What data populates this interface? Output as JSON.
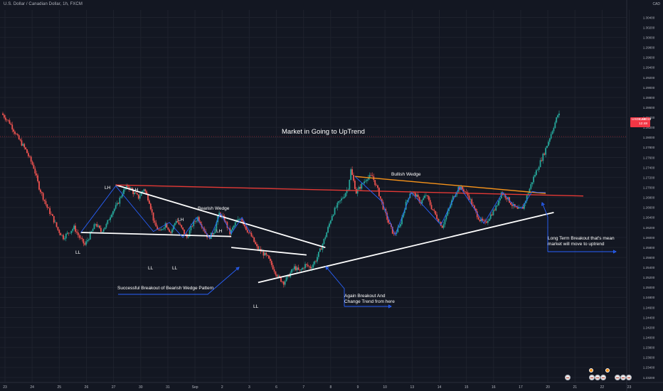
{
  "header": {
    "symbol_title": "U.S. Dollar / Canadian Dollar, 1h, FXCM",
    "currency": "CAD"
  },
  "current_price": {
    "symbol": "USDCAD",
    "value": "1.28019",
    "countdown": "12:48",
    "color": "#f23645"
  },
  "colors": {
    "background": "#131722",
    "grid": "#1e222d",
    "axis_text": "#b2b5be",
    "up_candle": "#26a69a",
    "down_candle": "#ef5350",
    "trend_white": "#ffffff",
    "resistance_red": "#e53935",
    "bullish_wedge_orange": "#f7931a",
    "swing_blue": "#2962ff"
  },
  "annotations": {
    "main_title": "Market in Going to UpTrend",
    "bearish_wedge": "Bearish Wedge",
    "bullish_wedge": "Bullish Wedge",
    "successful_breakout": "Successful Breakout of Bearish Wedge Pattern",
    "again_breakout": "Again Breakout And Change Trend from here",
    "long_term_breakout": "Long Term Breakout that's mean market will move to uptrend",
    "lh_1": "LH",
    "lh_2": "LH",
    "lh_3": "LH",
    "lh_4": "LH",
    "ll_1": "LL",
    "ll_2": "LL",
    "ll_3": "LL",
    "ll_4": "LL"
  },
  "chart_data": {
    "type": "candlestick",
    "symbol": "USDCAD",
    "timeframe": "1h",
    "title": "U.S. Dollar / Canadian Dollar, 1h, FXCM",
    "x_tick_labels": [
      "23",
      "24",
      "25",
      "26",
      "27",
      "30",
      "31",
      "Sep",
      "2",
      "3",
      "6",
      "7",
      "8",
      "9",
      "10",
      "13",
      "14",
      "15",
      "16",
      "17",
      "20",
      "21",
      "22",
      "23"
    ],
    "y_tick_labels": [
      "1.30400",
      "1.30200",
      "1.30000",
      "1.29800",
      "1.29600",
      "1.29400",
      "1.29200",
      "1.29000",
      "1.28800",
      "1.28600",
      "1.28400",
      "1.28200",
      "1.28000",
      "1.27800",
      "1.27600",
      "1.27400",
      "1.27200",
      "1.27000",
      "1.26800",
      "1.26600",
      "1.26400",
      "1.26200",
      "1.26000",
      "1.25800",
      "1.25600",
      "1.25400",
      "1.25200",
      "1.25000",
      "1.24800",
      "1.24600",
      "1.24400",
      "1.24200",
      "1.24000",
      "1.23800",
      "1.23600",
      "1.23400",
      "1.23200"
    ],
    "ylim": [
      1.231,
      1.3055
    ],
    "grid": true,
    "price_path": [
      [
        0,
        1.2848
      ],
      [
        3,
        1.283
      ],
      [
        6,
        1.28
      ],
      [
        9,
        1.2775
      ],
      [
        12,
        1.274
      ],
      [
        14,
        1.27
      ],
      [
        17,
        1.266
      ],
      [
        19,
        1.264
      ],
      [
        21,
        1.2615
      ],
      [
        23,
        1.26
      ],
      [
        25,
        1.261
      ],
      [
        27,
        1.262
      ],
      [
        29,
        1.26
      ],
      [
        31,
        1.2585
      ],
      [
        33,
        1.2605
      ],
      [
        35,
        1.2628
      ],
      [
        37,
        1.2612
      ],
      [
        39,
        1.2625
      ],
      [
        41,
        1.265
      ],
      [
        43,
        1.2665
      ],
      [
        45,
        1.269
      ],
      [
        47,
        1.2703
      ],
      [
        49,
        1.269
      ],
      [
        51,
        1.268
      ],
      [
        53,
        1.2698
      ],
      [
        55,
        1.2672
      ],
      [
        57,
        1.2625
      ],
      [
        59,
        1.261
      ],
      [
        61,
        1.2628
      ],
      [
        63,
        1.261
      ],
      [
        65,
        1.2635
      ],
      [
        67,
        1.2618
      ],
      [
        69,
        1.26
      ],
      [
        71,
        1.2625
      ],
      [
        73,
        1.264
      ],
      [
        75,
        1.262
      ],
      [
        77,
        1.2598
      ],
      [
        79,
        1.2612
      ],
      [
        81,
        1.2648
      ],
      [
        83,
        1.2635
      ],
      [
        85,
        1.2608
      ],
      [
        87,
        1.2628
      ],
      [
        89,
        1.264
      ],
      [
        91,
        1.2618
      ],
      [
        93,
        1.2602
      ],
      [
        95,
        1.258
      ],
      [
        97,
        1.257
      ],
      [
        99,
        1.256
      ],
      [
        101,
        1.254
      ],
      [
        103,
        1.252
      ],
      [
        105,
        1.251
      ],
      [
        107,
        1.2525
      ],
      [
        109,
        1.254
      ],
      [
        111,
        1.2532
      ],
      [
        113,
        1.2545
      ],
      [
        115,
        1.254
      ],
      [
        117,
        1.2555
      ],
      [
        119,
        1.258
      ],
      [
        121,
        1.261
      ],
      [
        123,
        1.2645
      ],
      [
        125,
        1.2665
      ],
      [
        127,
        1.268
      ],
      [
        129,
        1.27
      ],
      [
        130,
        1.2735
      ],
      [
        132,
        1.269
      ],
      [
        134,
        1.2705
      ],
      [
        136,
        1.272
      ],
      [
        138,
        1.2722
      ],
      [
        140,
        1.2695
      ],
      [
        142,
        1.266
      ],
      [
        144,
        1.263
      ],
      [
        146,
        1.2605
      ],
      [
        148,
        1.262
      ],
      [
        150,
        1.266
      ],
      [
        152,
        1.269
      ],
      [
        154,
        1.2685
      ],
      [
        156,
        1.267
      ],
      [
        158,
        1.2685
      ],
      [
        160,
        1.266
      ],
      [
        162,
        1.264
      ],
      [
        164,
        1.2622
      ],
      [
        166,
        1.265
      ],
      [
        168,
        1.268
      ],
      [
        170,
        1.27
      ],
      [
        172,
        1.2695
      ],
      [
        174,
        1.268
      ],
      [
        176,
        1.2655
      ],
      [
        178,
        1.2635
      ],
      [
        180,
        1.2628
      ],
      [
        182,
        1.2645
      ],
      [
        184,
        1.266
      ],
      [
        186,
        1.269
      ],
      [
        188,
        1.268
      ],
      [
        190,
        1.2665
      ],
      [
        192,
        1.2655
      ],
      [
        194,
        1.266
      ],
      [
        196,
        1.269
      ],
      [
        198,
        1.272
      ],
      [
        200,
        1.2745
      ],
      [
        202,
        1.277
      ],
      [
        204,
        1.28
      ],
      [
        206,
        1.283
      ],
      [
        207,
        1.2845
      ]
    ],
    "price_path_x_domain": [
      0,
      207
    ],
    "price_path_note_none": "",
    "last_price": 1.28019,
    "trend_lines": [
      {
        "name": "Bearish Wedge upper",
        "color": "white",
        "from": [
          42,
          1.2705
        ],
        "to": [
          120,
          1.258
        ]
      },
      {
        "name": "Bearish Wedge lower",
        "color": "white",
        "from": [
          29,
          1.261
        ],
        "to": [
          85,
          1.2602
        ]
      },
      {
        "name": "Breakout line",
        "color": "white",
        "from": [
          85,
          1.258
        ],
        "to": [
          113,
          1.2565
        ]
      },
      {
        "name": "Support trend",
        "color": "white",
        "from": [
          95,
          1.251
        ],
        "to": [
          205,
          1.265
        ]
      },
      {
        "name": "Resistance",
        "color": "red",
        "from": [
          42,
          1.2705
        ],
        "to": [
          216,
          1.2683
        ]
      },
      {
        "name": "Bullish Wedge",
        "color": "orange",
        "from": [
          131,
          1.2722
        ],
        "to": [
          202,
          1.2688
        ]
      }
    ]
  }
}
